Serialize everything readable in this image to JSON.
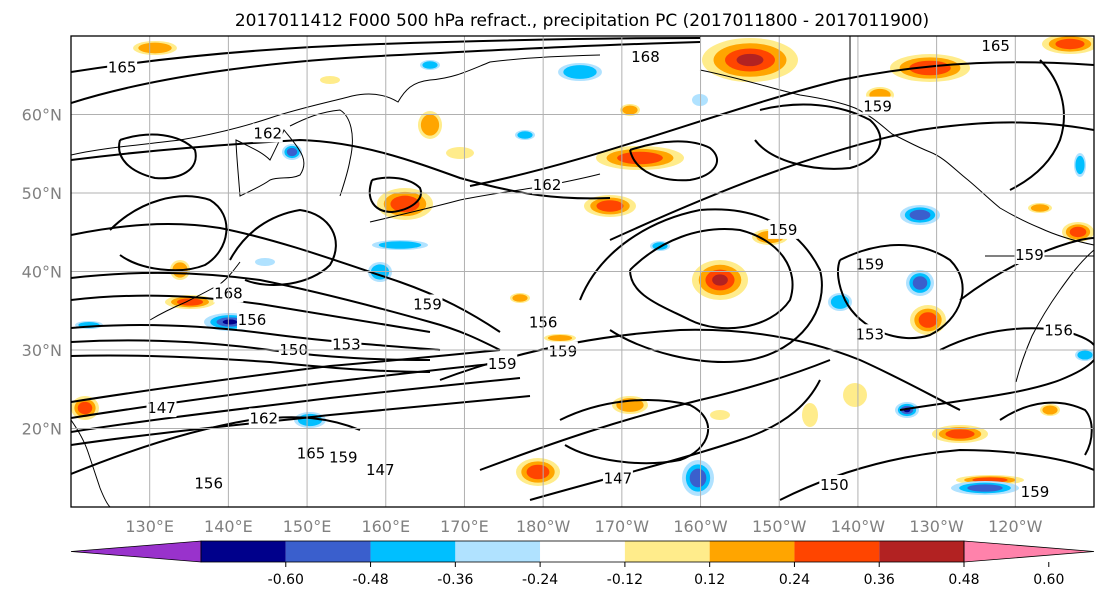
{
  "title": "2017011412 F000 500 hPa refract., precipitation PC (2017011800 - 2017011900)",
  "map": {
    "lon_range": [
      120,
      250
    ],
    "lat_range": [
      10,
      70
    ],
    "lon_ticks": [
      {
        "lon": 130,
        "label": "130°E"
      },
      {
        "lon": 140,
        "label": "140°E"
      },
      {
        "lon": 150,
        "label": "150°E"
      },
      {
        "lon": 160,
        "label": "160°E"
      },
      {
        "lon": 170,
        "label": "170°E"
      },
      {
        "lon": 180,
        "label": "180°W"
      },
      {
        "lon": 190,
        "label": "170°W"
      },
      {
        "lon": 200,
        "label": "160°W"
      },
      {
        "lon": 210,
        "label": "150°W"
      },
      {
        "lon": 220,
        "label": "140°W"
      },
      {
        "lon": 230,
        "label": "130°W"
      },
      {
        "lon": 240,
        "label": "120°W"
      }
    ],
    "lat_ticks": [
      {
        "lat": 20,
        "label": "20°N"
      },
      {
        "lat": 30,
        "label": "30°N"
      },
      {
        "lat": 40,
        "label": "40°N"
      },
      {
        "lat": 50,
        "label": "50°N"
      },
      {
        "lat": 60,
        "label": "60°N"
      }
    ],
    "grid": true,
    "contour_labels": [
      {
        "text": "165",
        "lon": 126.5,
        "lat": 66.0
      },
      {
        "text": "168",
        "lon": 193.0,
        "lat": 67.3
      },
      {
        "text": "165",
        "lon": 237.5,
        "lat": 68.7
      },
      {
        "text": "162",
        "lon": 145.0,
        "lat": 57.6
      },
      {
        "text": "159",
        "lon": 222.5,
        "lat": 61.0
      },
      {
        "text": "162",
        "lon": 180.5,
        "lat": 51.0
      },
      {
        "text": "159",
        "lon": 210.5,
        "lat": 45.3
      },
      {
        "text": "168",
        "lon": 140.0,
        "lat": 37.2
      },
      {
        "text": "156",
        "lon": 143.0,
        "lat": 33.8
      },
      {
        "text": "159",
        "lon": 165.3,
        "lat": 35.8
      },
      {
        "text": "156",
        "lon": 180.0,
        "lat": 33.5
      },
      {
        "text": "150",
        "lon": 148.3,
        "lat": 30.0
      },
      {
        "text": "153",
        "lon": 155.0,
        "lat": 30.7
      },
      {
        "text": "159",
        "lon": 182.5,
        "lat": 29.8
      },
      {
        "text": "159",
        "lon": 174.8,
        "lat": 28.2
      },
      {
        "text": "153",
        "lon": 221.5,
        "lat": 32.0
      },
      {
        "text": "159",
        "lon": 221.5,
        "lat": 40.9
      },
      {
        "text": "159",
        "lon": 241.8,
        "lat": 42.1
      },
      {
        "text": "156",
        "lon": 245.5,
        "lat": 32.5
      },
      {
        "text": "147",
        "lon": 131.5,
        "lat": 22.6
      },
      {
        "text": "162",
        "lon": 144.5,
        "lat": 21.3
      },
      {
        "text": "165",
        "lon": 150.5,
        "lat": 16.8
      },
      {
        "text": "159",
        "lon": 154.6,
        "lat": 16.3
      },
      {
        "text": "147",
        "lon": 159.3,
        "lat": 14.7
      },
      {
        "text": "156",
        "lon": 137.5,
        "lat": 13.0
      },
      {
        "text": "147",
        "lon": 189.5,
        "lat": 13.6
      },
      {
        "text": "150",
        "lon": 217.0,
        "lat": 12.8
      },
      {
        "text": "159",
        "lon": 242.5,
        "lat": 11.9
      }
    ]
  },
  "colorbar": {
    "labels": [
      "-0.60",
      "-0.48",
      "-0.36",
      "-0.24",
      "-0.12",
      "0.12",
      "0.24",
      "0.36",
      "0.48",
      "0.60"
    ],
    "colors": [
      "#9932cc",
      "#00008b",
      "#3a5fcd",
      "#00bfff",
      "#b0e2ff",
      "#ffffff",
      "#ffec8b",
      "#ffa500",
      "#ff4500",
      "#b22222",
      "#ff82ab"
    ]
  },
  "colors": {
    "contour": "#000000",
    "coast": "#000000",
    "grid": "#b0b0b0",
    "tick_label": "#808080"
  }
}
